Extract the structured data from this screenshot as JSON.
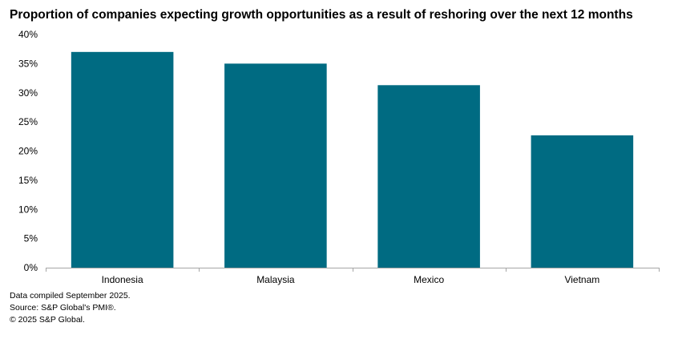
{
  "chart_data": {
    "type": "bar",
    "title": "Proportion of companies expecting growth opportunities as a result of reshoring over the next 12 months",
    "categories": [
      "Indonesia",
      "Malaysia",
      "Mexico",
      "Vietnam"
    ],
    "values": [
      37.0,
      35.0,
      31.3,
      22.7
    ],
    "ylim": [
      0,
      40
    ],
    "yticks": [
      0,
      5,
      10,
      15,
      20,
      25,
      30,
      35,
      40
    ],
    "ytick_labels": [
      "0%",
      "5%",
      "10%",
      "15%",
      "20%",
      "25%",
      "30%",
      "35%",
      "40%"
    ],
    "xlabel": "",
    "ylabel": "",
    "grid": false,
    "bar_color": "#006b82",
    "axis_color": "#a6a6a6"
  },
  "footnotes": {
    "line1": "Data compiled September 2025.",
    "line2": "Source: S&P Global's PMI®.",
    "line3": "© 2025 S&P Global."
  }
}
